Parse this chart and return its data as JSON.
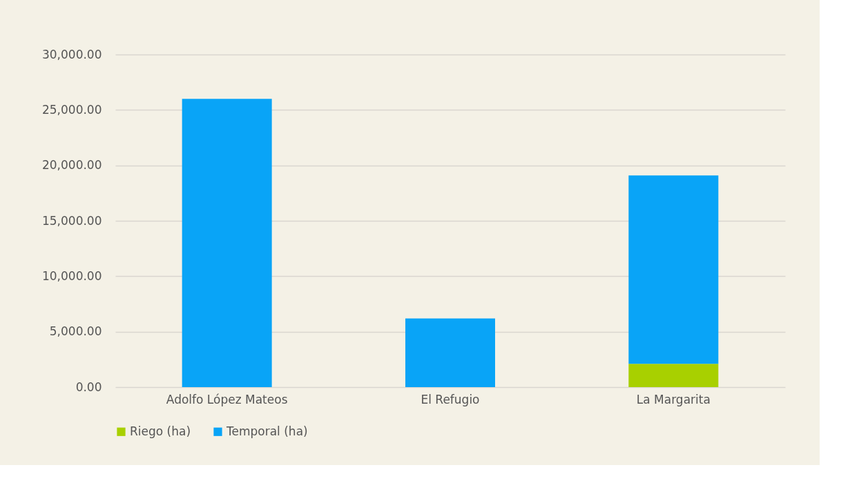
{
  "chart_data": {
    "type": "bar",
    "stacked": true,
    "categories": [
      "Adolfo López Mateos",
      "El Refugio",
      "La Margarita"
    ],
    "series": [
      {
        "name": "Riego (ha)",
        "color": "#a8d000",
        "values": [
          0,
          0,
          2100
        ]
      },
      {
        "name": "Temporal (ha)",
        "color": "#09a4f7",
        "values": [
          26000,
          6200,
          17000
        ]
      }
    ],
    "ylim": [
      0,
      30000
    ],
    "yticks": [
      {
        "value": 0,
        "label": "0.00"
      },
      {
        "value": 5000,
        "label": "5,000.00"
      },
      {
        "value": 10000,
        "label": "10,000.00"
      },
      {
        "value": 15000,
        "label": "15,000.00"
      },
      {
        "value": 20000,
        "label": "20,000.00"
      },
      {
        "value": 25000,
        "label": "25,000.00"
      },
      {
        "value": 30000,
        "label": "30,000.00"
      }
    ],
    "grid": "y",
    "legend": "bottom"
  }
}
